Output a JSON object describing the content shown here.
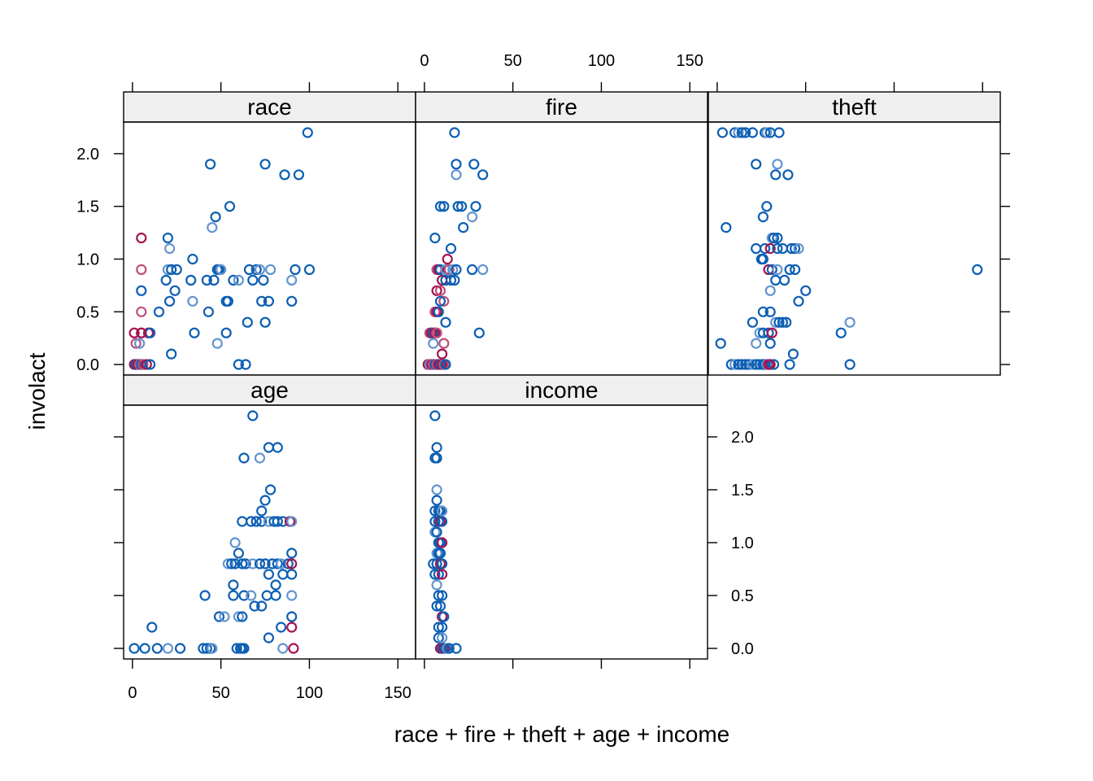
{
  "chart_data": {
    "type": "scatter",
    "xlabel": "race + fire + theft + age + income",
    "ylabel": "involact",
    "ylim": [
      -0.1,
      2.3
    ],
    "xlim": [
      -5,
      160
    ],
    "x_ticks": [
      "0",
      "50",
      "100",
      "150"
    ],
    "y_ticks": [
      "0.0",
      "0.5",
      "1.0",
      "1.5",
      "2.0"
    ],
    "grid": false,
    "colors": {
      "dark": "#0d5fb3",
      "light": "#6495cf",
      "pink": "#c0507a",
      "crimson": "#a5134f"
    },
    "panels": [
      {
        "name": "race",
        "points": [
          [
            1,
            0
          ],
          [
            2,
            0
          ],
          [
            3,
            0
          ],
          [
            4,
            0
          ],
          [
            5,
            0
          ],
          [
            6,
            0
          ],
          [
            8,
            0
          ],
          [
            10,
            0
          ],
          [
            1,
            0.3
          ],
          [
            2,
            0.2
          ],
          [
            4,
            0.2
          ],
          [
            5,
            0.3
          ],
          [
            9,
            0.3
          ],
          [
            10,
            0.3
          ],
          [
            5,
            1.2
          ],
          [
            5,
            0.9
          ],
          [
            5,
            0.7
          ],
          [
            5,
            0.5
          ],
          [
            5,
            0.3
          ],
          [
            20,
            1.2
          ],
          [
            21,
            1.1
          ],
          [
            15,
            0.5
          ],
          [
            19,
            0.8
          ],
          [
            22,
            0.1
          ],
          [
            24,
            0.7
          ],
          [
            20,
            0.9
          ],
          [
            22,
            0.9
          ],
          [
            25,
            0.9
          ],
          [
            21,
            0.6
          ],
          [
            33,
            0.8
          ],
          [
            34,
            0.6
          ],
          [
            35,
            0.3
          ],
          [
            34,
            1.0
          ],
          [
            42,
            0.8
          ],
          [
            43,
            0.5
          ],
          [
            45,
            1.3
          ],
          [
            46,
            0.8
          ],
          [
            47,
            1.4
          ],
          [
            48,
            0.9
          ],
          [
            49,
            0.9
          ],
          [
            50,
            0.9
          ],
          [
            53,
            0.6
          ],
          [
            54,
            0.6
          ],
          [
            55,
            1.5
          ],
          [
            57,
            0.8
          ],
          [
            60,
            0.8
          ],
          [
            65,
            0.4
          ],
          [
            66,
            0.9
          ],
          [
            68,
            0.8
          ],
          [
            70,
            0.9
          ],
          [
            72,
            0.9
          ],
          [
            73,
            0.6
          ],
          [
            74,
            0.8
          ],
          [
            75,
            0.4
          ],
          [
            77,
            0.6
          ],
          [
            78,
            0.9
          ],
          [
            44,
            1.9
          ],
          [
            75,
            1.9
          ],
          [
            86,
            1.8
          ],
          [
            94,
            1.8
          ],
          [
            90,
            0.8
          ],
          [
            92,
            0.9
          ],
          [
            90,
            0.6
          ],
          [
            100,
            0.9
          ],
          [
            99,
            2.2
          ],
          [
            48,
            0.2
          ],
          [
            53,
            0.3
          ],
          [
            60,
            0.0
          ],
          [
            64,
            0.0
          ]
        ]
      },
      {
        "name": "fire",
        "points": [
          [
            2,
            0
          ],
          [
            3,
            0
          ],
          [
            4,
            0
          ],
          [
            5,
            0
          ],
          [
            6,
            0
          ],
          [
            7,
            0
          ],
          [
            8,
            0
          ],
          [
            9,
            0
          ],
          [
            10,
            0
          ],
          [
            11,
            0
          ],
          [
            12,
            0
          ],
          [
            3,
            0.3
          ],
          [
            4,
            0.3
          ],
          [
            5,
            0.3
          ],
          [
            6,
            0.3
          ],
          [
            7,
            0.3
          ],
          [
            5,
            0.2
          ],
          [
            6,
            0.5
          ],
          [
            7,
            0.5
          ],
          [
            8,
            0.5
          ],
          [
            7,
            0.7
          ],
          [
            9,
            0.7
          ],
          [
            6,
            1.2
          ],
          [
            7,
            0.9
          ],
          [
            8,
            0.9
          ],
          [
            9,
            0.9
          ],
          [
            10,
            0.8
          ],
          [
            11,
            0.6
          ],
          [
            12,
            0.8
          ],
          [
            9,
            1.5
          ],
          [
            11,
            1.5
          ],
          [
            12,
            0.9
          ],
          [
            13,
            1.0
          ],
          [
            14,
            0.9
          ],
          [
            15,
            0.8
          ],
          [
            15,
            1.1
          ],
          [
            16,
            0.9
          ],
          [
            17,
            0.8
          ],
          [
            18,
            0.9
          ],
          [
            17,
            2.2
          ],
          [
            18,
            1.9
          ],
          [
            18,
            1.8
          ],
          [
            19,
            1.5
          ],
          [
            21,
            1.5
          ],
          [
            22,
            1.3
          ],
          [
            28,
            1.9
          ],
          [
            27,
            1.4
          ],
          [
            29,
            1.5
          ],
          [
            33,
            1.8
          ],
          [
            31,
            0.3
          ],
          [
            27,
            0.9
          ],
          [
            33,
            0.9
          ],
          [
            12,
            0.4
          ],
          [
            11,
            0.2
          ],
          [
            10,
            0.1
          ],
          [
            9,
            0.6
          ]
        ]
      },
      {
        "name": "theft",
        "points": [
          [
            3,
            2.2
          ],
          [
            10,
            2.2
          ],
          [
            12,
            2.2
          ],
          [
            14,
            2.2
          ],
          [
            16,
            2.2
          ],
          [
            20,
            2.2
          ],
          [
            27,
            2.2
          ],
          [
            28,
            2.2
          ],
          [
            30,
            2.2
          ],
          [
            35,
            2.2
          ],
          [
            5,
            1.3
          ],
          [
            22,
            1.9
          ],
          [
            34,
            1.9
          ],
          [
            33,
            1.8
          ],
          [
            40,
            1.8
          ],
          [
            28,
            1.5
          ],
          [
            26,
            1.4
          ],
          [
            31,
            1.2
          ],
          [
            32,
            1.2
          ],
          [
            34,
            1.2
          ],
          [
            22,
            1.1
          ],
          [
            27,
            1.1
          ],
          [
            30,
            1.1
          ],
          [
            34,
            1.1
          ],
          [
            37,
            1.1
          ],
          [
            42,
            1.1
          ],
          [
            44,
            1.1
          ],
          [
            46,
            1.1
          ],
          [
            25,
            1.0
          ],
          [
            26,
            1.0
          ],
          [
            29,
            0.9
          ],
          [
            31,
            0.9
          ],
          [
            34,
            0.9
          ],
          [
            41,
            0.9
          ],
          [
            44,
            0.9
          ],
          [
            33,
            0.8
          ],
          [
            38,
            0.8
          ],
          [
            30,
            0.7
          ],
          [
            50,
            0.7
          ],
          [
            46,
            0.6
          ],
          [
            26,
            0.5
          ],
          [
            30,
            0.5
          ],
          [
            33,
            0.4
          ],
          [
            35,
            0.4
          ],
          [
            37,
            0.4
          ],
          [
            39,
            0.4
          ],
          [
            20,
            0.4
          ],
          [
            24,
            0.3
          ],
          [
            26,
            0.3
          ],
          [
            29,
            0.3
          ],
          [
            31,
            0.3
          ],
          [
            2,
            0.2
          ],
          [
            22,
            0.2
          ],
          [
            30,
            0.2
          ],
          [
            43,
            0.1
          ],
          [
            41,
            0.0
          ],
          [
            8,
            0
          ],
          [
            10,
            0
          ],
          [
            12,
            0
          ],
          [
            14,
            0
          ],
          [
            16,
            0
          ],
          [
            18,
            0
          ],
          [
            20,
            0
          ],
          [
            22,
            0
          ],
          [
            24,
            0
          ],
          [
            26,
            0
          ],
          [
            27,
            0
          ],
          [
            28,
            0
          ],
          [
            30,
            0
          ],
          [
            32,
            0
          ],
          [
            29,
            0
          ],
          [
            70,
            0.3
          ],
          [
            75,
            0.4
          ],
          [
            75,
            0
          ],
          [
            147,
            0.9
          ]
        ]
      },
      {
        "name": "age",
        "points": [
          [
            1,
            0
          ],
          [
            7,
            0
          ],
          [
            14,
            0
          ],
          [
            20,
            0
          ],
          [
            27,
            0
          ],
          [
            40,
            0
          ],
          [
            42,
            0
          ],
          [
            44,
            0
          ],
          [
            45,
            0
          ],
          [
            59,
            0
          ],
          [
            61,
            0
          ],
          [
            62,
            0
          ],
          [
            63,
            0
          ],
          [
            85,
            0
          ],
          [
            91,
            0
          ],
          [
            11,
            0.2
          ],
          [
            77,
            0.1
          ],
          [
            84,
            0.2
          ],
          [
            60,
            0.3
          ],
          [
            62,
            0.3
          ],
          [
            90,
            0.2
          ],
          [
            90,
            0.3
          ],
          [
            49,
            0.3
          ],
          [
            52,
            0.3
          ],
          [
            41,
            0.5
          ],
          [
            57,
            0.6
          ],
          [
            57,
            0.5
          ],
          [
            63,
            0.5
          ],
          [
            67,
            0.5
          ],
          [
            69,
            0.4
          ],
          [
            73,
            0.4
          ],
          [
            76,
            0.5
          ],
          [
            81,
            0.5
          ],
          [
            90,
            0.5
          ],
          [
            81,
            0.6
          ],
          [
            77,
            0.7
          ],
          [
            85,
            0.7
          ],
          [
            90,
            0.7
          ],
          [
            54,
            0.8
          ],
          [
            56,
            0.8
          ],
          [
            58,
            0.8
          ],
          [
            62,
            0.8
          ],
          [
            64,
            0.8
          ],
          [
            68,
            0.8
          ],
          [
            72,
            0.8
          ],
          [
            75,
            0.8
          ],
          [
            79,
            0.8
          ],
          [
            82,
            0.8
          ],
          [
            84,
            0.8
          ],
          [
            88,
            0.8
          ],
          [
            90,
            0.8
          ],
          [
            90,
            0.9
          ],
          [
            60,
            0.9
          ],
          [
            58,
            1.0
          ],
          [
            62,
            1.2
          ],
          [
            67,
            1.2
          ],
          [
            70,
            1.2
          ],
          [
            73,
            1.2
          ],
          [
            77,
            1.2
          ],
          [
            80,
            1.2
          ],
          [
            82,
            1.2
          ],
          [
            85,
            1.2
          ],
          [
            89,
            1.2
          ],
          [
            90,
            1.2
          ],
          [
            73,
            1.3
          ],
          [
            75,
            1.4
          ],
          [
            78,
            1.5
          ],
          [
            63,
            1.8
          ],
          [
            72,
            1.8
          ],
          [
            77,
            1.9
          ],
          [
            82,
            1.9
          ],
          [
            68,
            2.2
          ]
        ]
      },
      {
        "name": "income",
        "points": [
          [
            6,
            2.2
          ],
          [
            7,
            1.9
          ],
          [
            6,
            1.8
          ],
          [
            7,
            1.8
          ],
          [
            7,
            1.5
          ],
          [
            7,
            1.4
          ],
          [
            6,
            1.3
          ],
          [
            8,
            1.3
          ],
          [
            9,
            1.3
          ],
          [
            10,
            1.3
          ],
          [
            6,
            1.2
          ],
          [
            8,
            1.2
          ],
          [
            9,
            1.2
          ],
          [
            10,
            1.2
          ],
          [
            6,
            1.1
          ],
          [
            7,
            1.1
          ],
          [
            8,
            1.0
          ],
          [
            9,
            1.0
          ],
          [
            10,
            1.0
          ],
          [
            7,
            0.9
          ],
          [
            8,
            0.9
          ],
          [
            9,
            0.9
          ],
          [
            5,
            0.8
          ],
          [
            7,
            0.8
          ],
          [
            9,
            0.8
          ],
          [
            10,
            0.8
          ],
          [
            6,
            0.7
          ],
          [
            8,
            0.7
          ],
          [
            10,
            0.7
          ],
          [
            7,
            0.6
          ],
          [
            8,
            0.5
          ],
          [
            10,
            0.5
          ],
          [
            7,
            0.4
          ],
          [
            9,
            0.4
          ],
          [
            10,
            0.3
          ],
          [
            11,
            0.3
          ],
          [
            8,
            0.2
          ],
          [
            10,
            0.2
          ],
          [
            8,
            0.1
          ],
          [
            10,
            0.1
          ],
          [
            9,
            0
          ],
          [
            10,
            0
          ],
          [
            11,
            0
          ],
          [
            12,
            0
          ],
          [
            13,
            0
          ],
          [
            14,
            0
          ],
          [
            18,
            0
          ]
        ]
      }
    ]
  }
}
